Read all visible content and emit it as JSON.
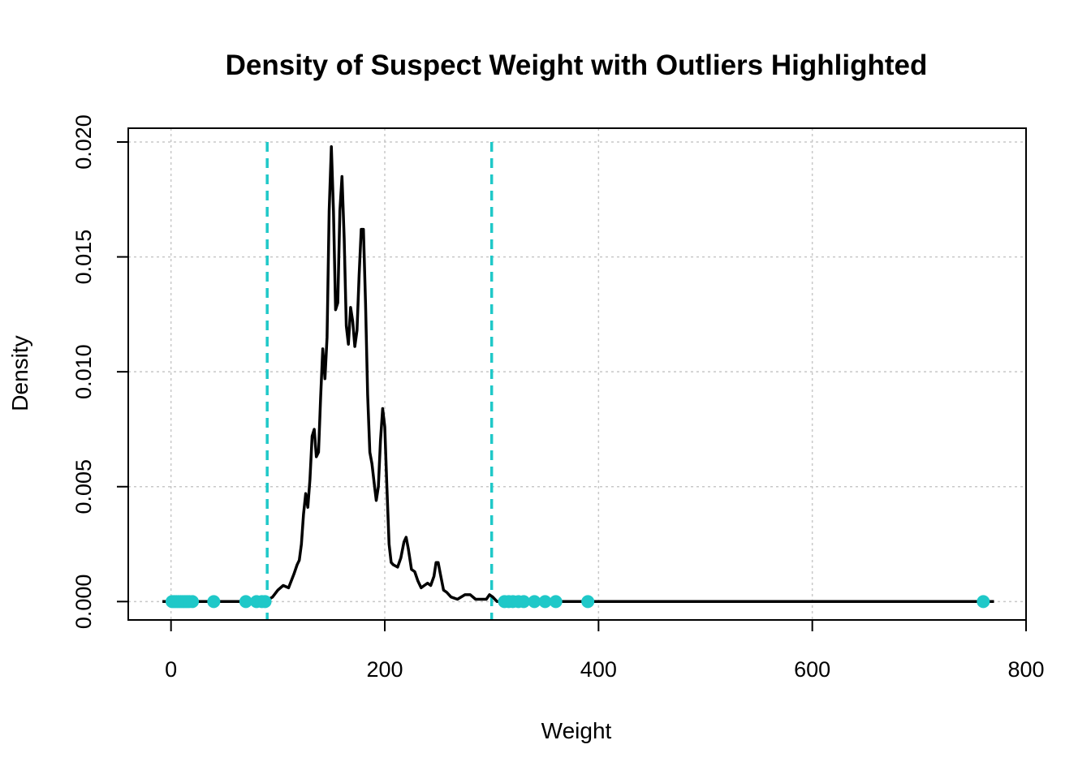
{
  "chart_data": {
    "type": "line",
    "title": "Density of Suspect Weight with Outliers Highlighted",
    "xlabel": "Weight",
    "ylabel": "Density",
    "xlim": [
      -40,
      800
    ],
    "ylim": [
      -0.0008,
      0.0206
    ],
    "x_ticks": [
      0,
      200,
      400,
      600,
      800
    ],
    "x_tick_labels": [
      "0",
      "200",
      "400",
      "600",
      "800"
    ],
    "y_ticks": [
      0.0,
      0.005,
      0.01,
      0.015,
      0.02
    ],
    "y_tick_labels": [
      "0.000",
      "0.005",
      "0.010",
      "0.015",
      "0.020"
    ],
    "grid": true,
    "series": [
      {
        "kind": "density-line",
        "color": "#000000",
        "x": [
          -8,
          0,
          20,
          40,
          60,
          80,
          88,
          95,
          100,
          105,
          110,
          115,
          118,
          120,
          122,
          124,
          126,
          128,
          130,
          132,
          134,
          136,
          138,
          140,
          142,
          144,
          146,
          148,
          150,
          152,
          154,
          156,
          158,
          160,
          162,
          164,
          166,
          168,
          170,
          172,
          174,
          176,
          178,
          180,
          182,
          184,
          186,
          188,
          190,
          192,
          194,
          196,
          198,
          200,
          202,
          204,
          206,
          208,
          212,
          215,
          218,
          220,
          222,
          225,
          228,
          231,
          234,
          237,
          240,
          243,
          246,
          248,
          250,
          252,
          255,
          258,
          262,
          268,
          275,
          280,
          285,
          290,
          295,
          298,
          301,
          305,
          310,
          320,
          340,
          360,
          400,
          500,
          600,
          700,
          770
        ],
        "y": [
          0,
          0,
          0,
          0,
          0,
          0,
          0,
          0.0002,
          0.0005,
          0.0007,
          0.0006,
          0.0012,
          0.0016,
          0.0018,
          0.0025,
          0.0038,
          0.0047,
          0.0041,
          0.0053,
          0.0072,
          0.0075,
          0.0063,
          0.0065,
          0.0089,
          0.011,
          0.0097,
          0.0115,
          0.017,
          0.0198,
          0.017,
          0.0127,
          0.013,
          0.017,
          0.0185,
          0.0158,
          0.012,
          0.0112,
          0.0128,
          0.0122,
          0.0111,
          0.0118,
          0.0142,
          0.0162,
          0.0162,
          0.013,
          0.009,
          0.0065,
          0.006,
          0.0052,
          0.0044,
          0.005,
          0.007,
          0.0084,
          0.0076,
          0.005,
          0.0025,
          0.0017,
          0.0016,
          0.0015,
          0.0019,
          0.0026,
          0.0028,
          0.0023,
          0.0014,
          0.0013,
          0.0009,
          0.0006,
          0.0007,
          0.0008,
          0.0007,
          0.0011,
          0.0017,
          0.0017,
          0.0012,
          0.0005,
          0.0004,
          0.0002,
          0.0001,
          0.0003,
          0.0003,
          0.0001,
          0.0001,
          0.0001,
          0.0003,
          0.0002,
          0.0,
          0,
          0,
          0,
          0,
          0,
          0,
          0,
          0,
          0
        ]
      },
      {
        "kind": "outlier-points",
        "color": "#1fc8c8",
        "x": [
          1,
          3,
          5,
          7,
          9,
          11,
          13,
          15,
          17,
          20,
          40,
          70,
          80,
          85,
          88,
          312,
          316,
          320,
          325,
          330,
          340,
          350,
          360,
          390,
          760
        ],
        "y": [
          0,
          0,
          0,
          0,
          0,
          0,
          0,
          0,
          0,
          0,
          0,
          0,
          0,
          0,
          0,
          0,
          0,
          0,
          0,
          0,
          0,
          0,
          0,
          0,
          0
        ]
      }
    ],
    "vlines": [
      {
        "x": 90,
        "color": "#1fc8c8",
        "style": "dashed"
      },
      {
        "x": 300,
        "color": "#1fc8c8",
        "style": "dashed"
      }
    ]
  }
}
